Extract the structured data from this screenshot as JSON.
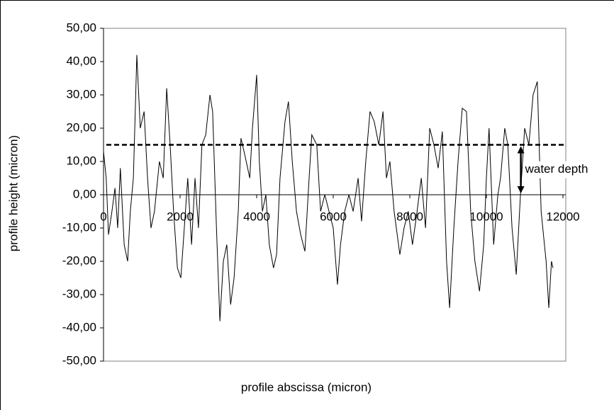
{
  "chart_data": {
    "type": "line",
    "x_label": "profile abscissa (micron)",
    "y_label": "profile height (micron)",
    "xlim": [
      0,
      12000
    ],
    "xticks": [
      0,
      2000,
      4000,
      6000,
      8000,
      10000,
      12000
    ],
    "ylim": [
      -50,
      50
    ],
    "yticks": [
      {
        "value": -50,
        "label": "-50,00"
      },
      {
        "value": -40,
        "label": "-40,00"
      },
      {
        "value": -30,
        "label": "-30,00"
      },
      {
        "value": -20,
        "label": "-20,00"
      },
      {
        "value": -10,
        "label": "-10,00"
      },
      {
        "value": 0,
        "label": "0,00"
      },
      {
        "value": 10,
        "label": "10,00"
      },
      {
        "value": 20,
        "label": "20,00"
      },
      {
        "value": 30,
        "label": "30,00"
      },
      {
        "value": 40,
        "label": "40,00"
      },
      {
        "value": 50,
        "label": "50,00"
      }
    ],
    "grid": false,
    "water_level": 15,
    "annotation": {
      "text": "water depth",
      "x": 10900
    },
    "series": [
      {
        "color": "#000000",
        "x": [
          0,
          70,
          130,
          220,
          300,
          370,
          440,
          540,
          630,
          700,
          780,
          870,
          960,
          1060,
          1150,
          1240,
          1330,
          1460,
          1560,
          1650,
          1740,
          1830,
          1930,
          2020,
          2110,
          2200,
          2300,
          2390,
          2480,
          2570,
          2670,
          2780,
          2850,
          2950,
          3040,
          3130,
          3220,
          3320,
          3410,
          3520,
          3590,
          3690,
          3820,
          3890,
          4000,
          4070,
          4150,
          4240,
          4330,
          4440,
          4520,
          4610,
          4740,
          4830,
          4930,
          5040,
          5150,
          5260,
          5370,
          5440,
          5570,
          5670,
          5780,
          5890,
          6000,
          6110,
          6190,
          6300,
          6410,
          6520,
          6650,
          6740,
          6850,
          6960,
          7070,
          7190,
          7300,
          7390,
          7480,
          7590,
          7740,
          7850,
          7960,
          8070,
          8190,
          8300,
          8410,
          8520,
          8630,
          8740,
          8850,
          8960,
          9040,
          9150,
          9260,
          9370,
          9480,
          9590,
          9700,
          9820,
          9930,
          10000,
          10070,
          10190,
          10300,
          10370,
          10480,
          10560,
          10670,
          10780,
          10890,
          11000,
          11110,
          11220,
          11330,
          11430,
          11560,
          11630,
          11700,
          11740
        ],
        "values": [
          13,
          5,
          -12,
          -5,
          2,
          -10,
          8,
          -15,
          -20,
          -5,
          5,
          42,
          20,
          25,
          5,
          -10,
          -5,
          10,
          5,
          32,
          15,
          -5,
          -22,
          -25,
          -10,
          5,
          -15,
          5,
          -10,
          15,
          18,
          30,
          25,
          -10,
          -38,
          -20,
          -15,
          -33,
          -25,
          -5,
          17,
          12,
          5,
          20,
          36,
          10,
          -5,
          0,
          -15,
          -22,
          -18,
          5,
          22,
          28,
          10,
          -5,
          -12,
          -17,
          5,
          18,
          15,
          -5,
          0,
          -5,
          -10,
          -27,
          -15,
          -5,
          0,
          -5,
          5,
          -8,
          10,
          25,
          22,
          15,
          25,
          5,
          10,
          -5,
          -18,
          -10,
          -5,
          -15,
          -5,
          5,
          -10,
          20,
          15,
          8,
          19,
          -20,
          -34,
          -10,
          10,
          26,
          25,
          -5,
          -20,
          -29,
          -15,
          5,
          20,
          -15,
          0,
          5,
          20,
          15,
          -10,
          -24,
          0,
          20,
          15,
          30,
          34,
          -5,
          -20,
          -34,
          -20,
          -22
        ]
      }
    ]
  }
}
